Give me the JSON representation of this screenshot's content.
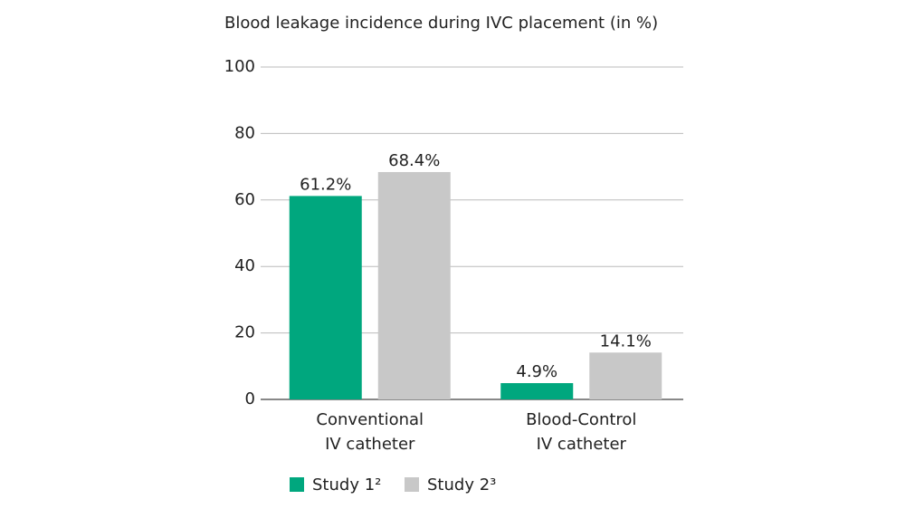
{
  "chart_data": {
    "type": "bar",
    "title": "Blood leakage incidence during IVC placement (in %)",
    "categories": [
      "Conventional\nIV catheter",
      "Blood-Control\nIV catheter"
    ],
    "series": [
      {
        "name": "Study 1²",
        "color": "#00a77e",
        "values": [
          61.2,
          4.9
        ],
        "value_labels": [
          "61.2%",
          "4.9%"
        ]
      },
      {
        "name": "Study 2³",
        "color": "#c8c8c8",
        "values": [
          68.4,
          14.1
        ],
        "value_labels": [
          "68.4%",
          "14.1%"
        ]
      }
    ],
    "ylim": [
      0,
      100
    ],
    "yticks": [
      0,
      20,
      40,
      60,
      80,
      100
    ],
    "grid": true,
    "legend": "bottom"
  }
}
